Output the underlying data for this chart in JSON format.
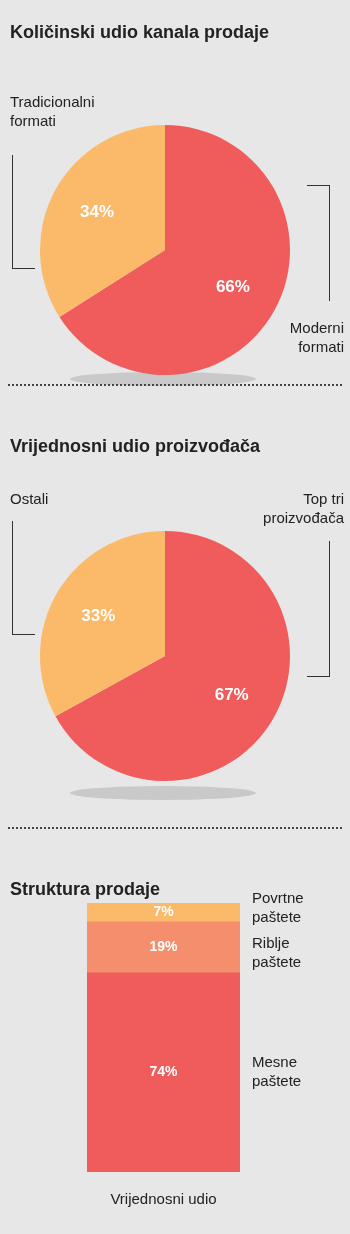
{
  "chart_data": [
    {
      "type": "pie",
      "title": "Količinski udio kanala prodaje",
      "categories": [
        "Moderni formati",
        "Tradicionalni formati"
      ],
      "values": [
        66,
        34
      ],
      "colors": [
        "#f05c5c",
        "#fbb96a"
      ],
      "value_labels": [
        "66%",
        "34%"
      ]
    },
    {
      "type": "pie",
      "title": "Vrijednosni udio proizvođača",
      "categories": [
        "Top tri proizvođača",
        "Ostali"
      ],
      "values": [
        67,
        33
      ],
      "colors": [
        "#f05c5c",
        "#fbb96a"
      ],
      "value_labels": [
        "67%",
        "33%"
      ]
    },
    {
      "type": "bar",
      "title": "Struktura prodaje",
      "categories": [
        null
      ],
      "xlabel": "Vrijednosni udio",
      "stacked": true,
      "tick_labels": false,
      "series": [
        {
          "name": "Mesne paštete",
          "color": "#f05c5c",
          "values": [
            74
          ],
          "value_labels": [
            "74%"
          ]
        },
        {
          "name": "Riblje paštete",
          "color": "#f58e6d",
          "values": [
            19
          ],
          "value_labels": [
            "19%"
          ]
        },
        {
          "name": "Povrtne paštete",
          "color": "#fbb96a",
          "values": [
            7
          ],
          "value_labels": [
            "7%"
          ]
        }
      ]
    }
  ]
}
